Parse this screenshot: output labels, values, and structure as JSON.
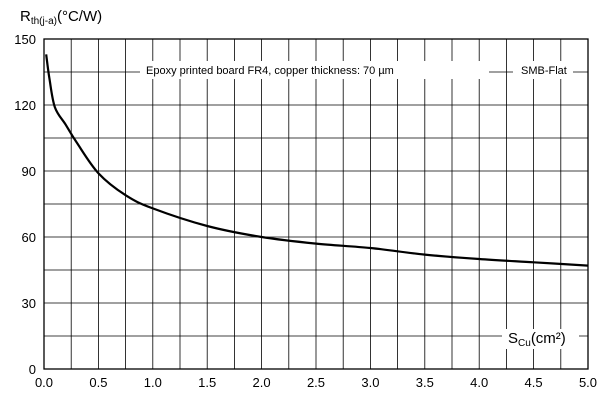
{
  "chart_data": {
    "type": "line",
    "ylabel_main": "R",
    "ylabel_sub": "th(j-a)",
    "ylabel_unit": "(°C/W)",
    "xlabel_main": "S",
    "xlabel_sub": "Cu",
    "xlabel_unit": "(cm²)",
    "annotation_condition": "Epoxy printed board FR4, copper thickness: 70 µm",
    "annotation_package": "SMB-Flat",
    "xlim": [
      0,
      5
    ],
    "ylim": [
      0,
      150
    ],
    "x_ticks": [
      "0.0",
      "0.5",
      "1.0",
      "1.5",
      "2.0",
      "2.5",
      "3.0",
      "3.5",
      "4.0",
      "4.5",
      "5.0"
    ],
    "y_ticks": [
      "0",
      "30",
      "60",
      "90",
      "120",
      "150"
    ],
    "grid": true,
    "series": [
      {
        "x": [
          0.02,
          0.05,
          0.1,
          0.2,
          0.3,
          0.5,
          0.75,
          1.0,
          1.5,
          2.0,
          2.5,
          3.0,
          3.5,
          4.0,
          4.5,
          5.0
        ],
        "y": [
          143,
          132,
          119,
          111,
          103,
          89,
          79,
          73,
          65,
          60,
          57,
          55,
          52,
          50,
          48.5,
          47
        ]
      }
    ]
  }
}
